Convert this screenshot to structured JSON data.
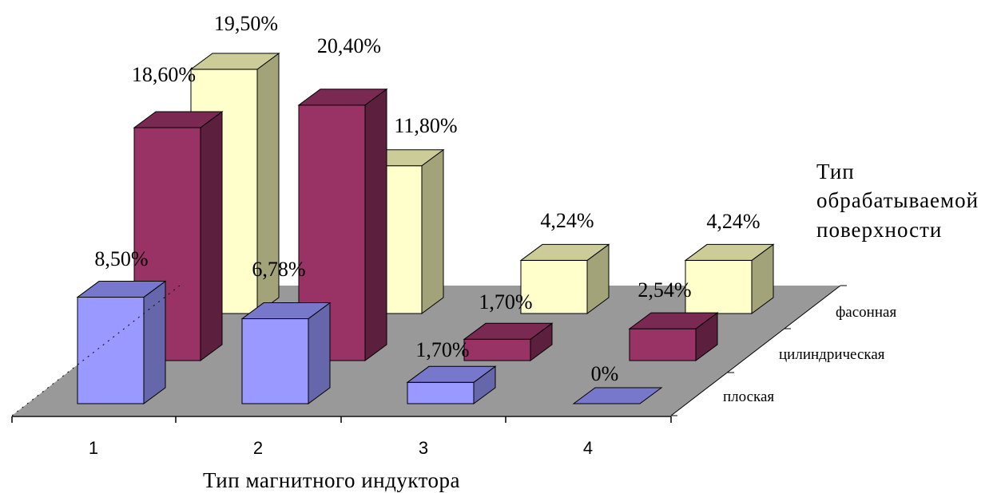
{
  "chart_data": {
    "type": "bar",
    "style": "3d-clustered",
    "categories": [
      "1",
      "2",
      "3",
      "4"
    ],
    "series": [
      {
        "name": "плоская",
        "values": [
          8.5,
          6.78,
          1.7,
          0
        ],
        "labels": [
          "8,50%",
          "6,78%",
          "1,70%",
          "0%"
        ],
        "color": "#9999ff"
      },
      {
        "name": "цилиндрическая",
        "values": [
          18.6,
          20.4,
          1.7,
          2.54
        ],
        "labels": [
          "18,60%",
          "20,40%",
          "1,70%",
          "2,54%"
        ],
        "color": "#993366"
      },
      {
        "name": "фасонная",
        "values": [
          19.5,
          11.8,
          4.24,
          4.24
        ],
        "labels": [
          "19,50%",
          "11,80%",
          "4,24%",
          "4,24%"
        ],
        "color": "#ffffcc"
      }
    ],
    "xlabel": "Тип магнитного индуктора",
    "zlabel_lines": [
      "Тип",
      "обрабатываемой",
      "поверхности"
    ],
    "floor_color": "#999999",
    "grid": false
  }
}
